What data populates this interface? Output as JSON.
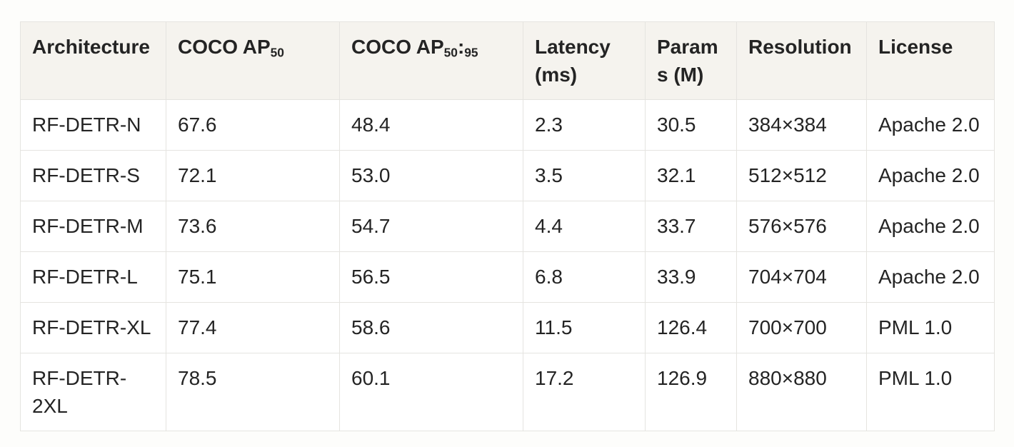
{
  "colors": {
    "page_bg": "#fdfdfb",
    "body_bg": "#ffffff",
    "header_bg": "#f5f3ee",
    "border": "#e5e4e0",
    "text": "#242424"
  },
  "table": {
    "columns": [
      {
        "key": "architecture",
        "label": "Architecture"
      },
      {
        "key": "coco-ap50",
        "label_main": "COCO AP",
        "label_sub": "50"
      },
      {
        "key": "coco-ap50-95",
        "label_main": "COCO AP",
        "label_sub": "50",
        "label_sep": ":",
        "label_sub2": "95"
      },
      {
        "key": "latency",
        "label": "Latency (ms)"
      },
      {
        "key": "params",
        "label": "Params (M)"
      },
      {
        "key": "resolution",
        "label": "Resolution"
      },
      {
        "key": "license",
        "label": "License"
      }
    ],
    "rows": [
      [
        "RF-DETR-N",
        "67.6",
        "48.4",
        "2.3",
        "30.5",
        "384×384",
        "Apache 2.0"
      ],
      [
        "RF-DETR-S",
        "72.1",
        "53.0",
        "3.5",
        "32.1",
        "512×512",
        "Apache 2.0"
      ],
      [
        "RF-DETR-M",
        "73.6",
        "54.7",
        "4.4",
        "33.7",
        "576×576",
        "Apache 2.0"
      ],
      [
        "RF-DETR-L",
        "75.1",
        "56.5",
        "6.8",
        "33.9",
        "704×704",
        "Apache 2.0"
      ],
      [
        "RF-DETR-XL",
        "77.4",
        "58.6",
        "11.5",
        "126.4",
        "700×700",
        "PML 1.0"
      ],
      [
        "RF-DETR-2XL",
        "78.5",
        "60.1",
        "17.2",
        "126.9",
        "880×880",
        "PML 1.0"
      ]
    ]
  }
}
